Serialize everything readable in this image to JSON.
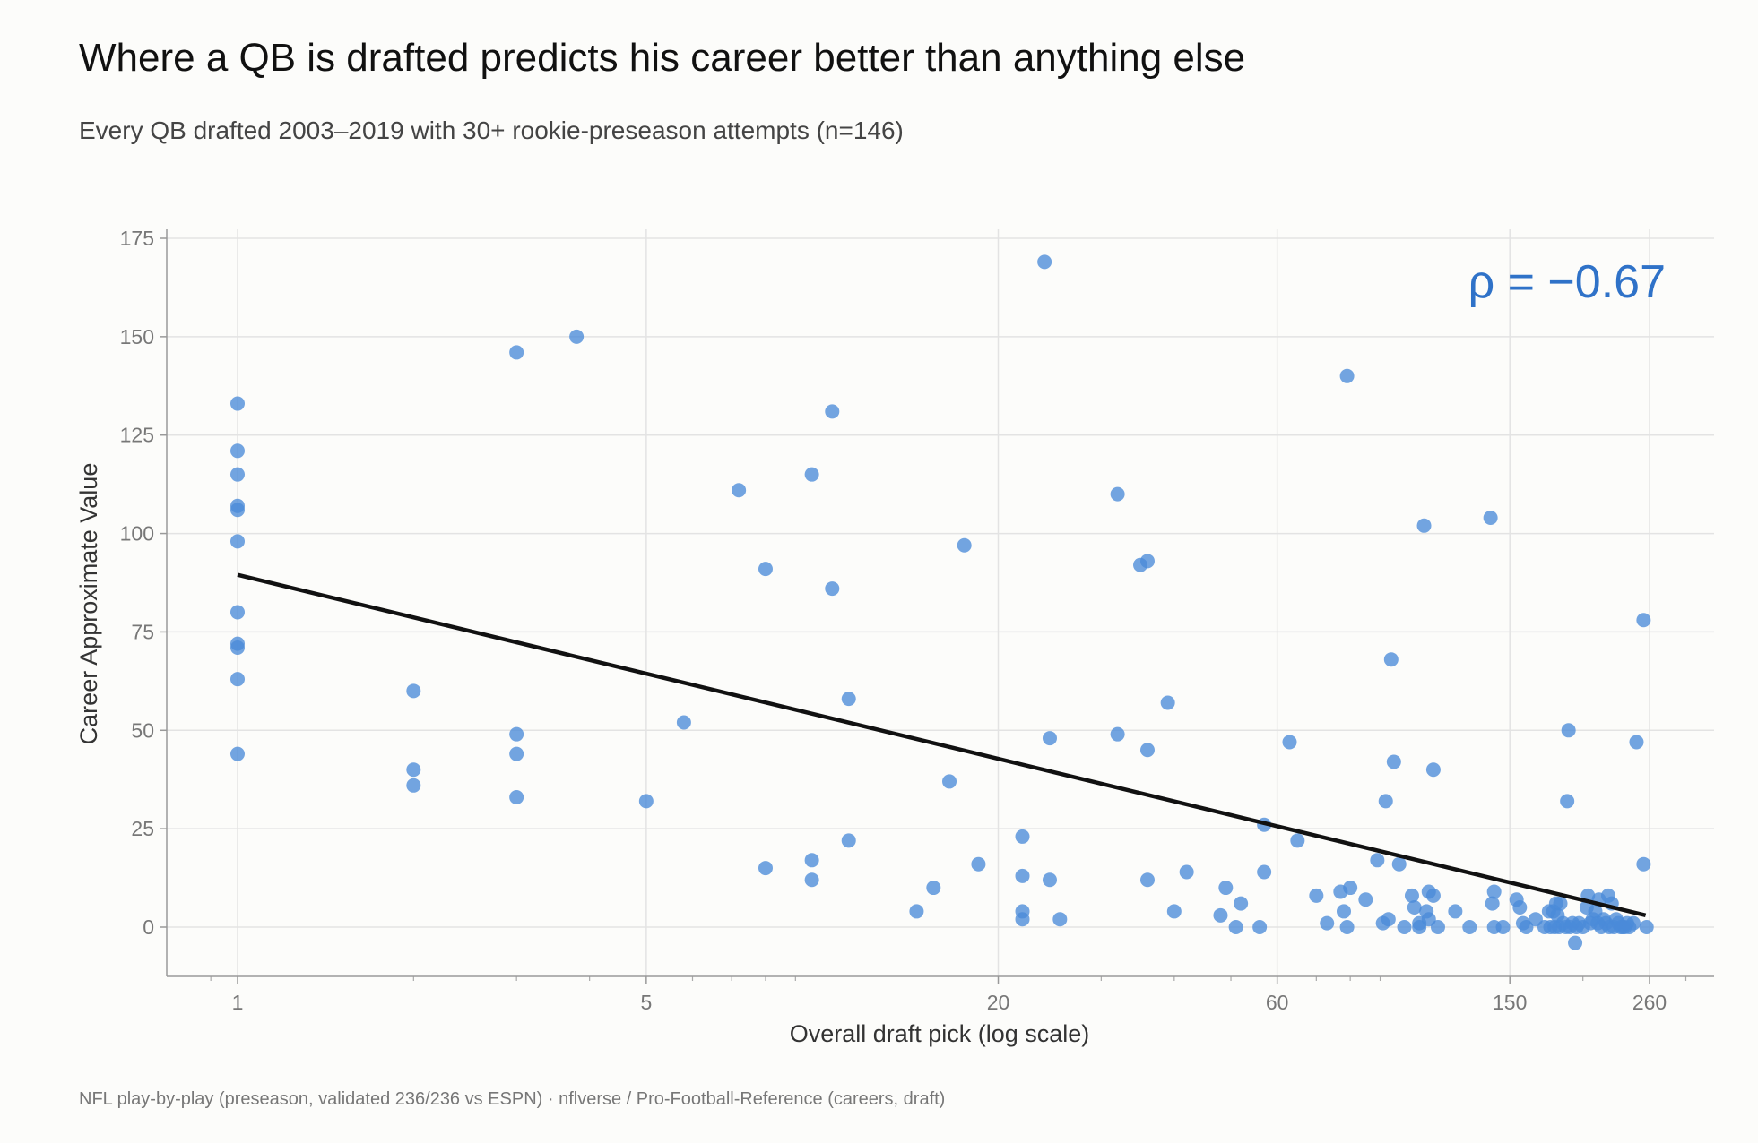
{
  "header": {
    "title": "Where a QB is drafted predicts his career better than anything else",
    "subtitle": "Every QB drafted 2003–2019 with 30+ rookie-preseason attempts (n=146)"
  },
  "footer": {
    "source": "NFL play-by-play (preseason, validated 236/236 vs ESPN)  ·  nflverse / Pro-Football-Reference (careers, draft)"
  },
  "colors": {
    "points": "#4a8ad8",
    "trend": "#111111",
    "annotation": "#2f72c8",
    "grid": "#e3e3e3"
  },
  "chart_data": {
    "type": "scatter",
    "xlabel": "Overall draft pick (log scale)",
    "ylabel": "Career Approximate Value",
    "x_scale": "log",
    "xlim": [
      0.8,
      300
    ],
    "ylim": [
      -25,
      178
    ],
    "x_ticks": [
      1,
      5,
      20,
      60,
      150,
      260
    ],
    "x_tick_labels": [
      "1",
      "5",
      "20",
      "60",
      "150",
      "260"
    ],
    "y_ticks": [
      0,
      25,
      50,
      75,
      100,
      125,
      150,
      175
    ],
    "y_tick_labels": [
      "0",
      "25",
      "50",
      "75",
      "100",
      "125",
      "150",
      "175"
    ],
    "grid": true,
    "annotation": "ρ = −0.67",
    "trend_line": {
      "x": [
        1,
        256
      ],
      "y": [
        89.5,
        3
      ]
    },
    "points": [
      [
        1,
        133
      ],
      [
        1,
        121
      ],
      [
        1,
        115
      ],
      [
        1,
        107
      ],
      [
        1,
        106
      ],
      [
        1,
        98
      ],
      [
        1,
        80
      ],
      [
        1,
        72
      ],
      [
        1,
        71
      ],
      [
        1,
        63
      ],
      [
        1,
        44
      ],
      [
        2,
        60
      ],
      [
        2,
        40
      ],
      [
        2,
        36
      ],
      [
        3,
        146
      ],
      [
        3,
        49
      ],
      [
        3,
        44
      ],
      [
        3,
        33
      ],
      [
        3.8,
        150
      ],
      [
        5,
        32
      ],
      [
        5.8,
        52
      ],
      [
        7.2,
        111
      ],
      [
        8,
        91
      ],
      [
        8,
        15
      ],
      [
        9.6,
        115
      ],
      [
        9.6,
        17
      ],
      [
        9.6,
        12
      ],
      [
        10.4,
        131
      ],
      [
        10.4,
        86
      ],
      [
        11.1,
        58
      ],
      [
        11.1,
        22
      ],
      [
        14.5,
        4
      ],
      [
        15.5,
        10
      ],
      [
        16.5,
        37
      ],
      [
        17.5,
        97
      ],
      [
        18.5,
        16
      ],
      [
        22,
        23
      ],
      [
        22,
        13
      ],
      [
        22,
        4
      ],
      [
        22,
        2
      ],
      [
        24,
        169
      ],
      [
        24.5,
        48
      ],
      [
        24.5,
        12
      ],
      [
        25.5,
        2
      ],
      [
        32,
        110
      ],
      [
        32,
        49
      ],
      [
        35,
        92
      ],
      [
        36,
        93
      ],
      [
        36,
        45
      ],
      [
        36,
        12
      ],
      [
        39,
        57
      ],
      [
        40,
        4
      ],
      [
        42,
        14
      ],
      [
        48,
        3
      ],
      [
        49,
        10
      ],
      [
        51,
        0
      ],
      [
        52,
        6
      ],
      [
        56,
        0
      ],
      [
        57,
        26
      ],
      [
        57,
        14
      ],
      [
        63,
        47
      ],
      [
        65,
        22
      ],
      [
        70,
        8
      ],
      [
        73,
        1
      ],
      [
        77,
        9
      ],
      [
        78,
        4
      ],
      [
        79,
        0
      ],
      [
        79,
        140
      ],
      [
        80,
        10
      ],
      [
        85,
        7
      ],
      [
        89,
        17
      ],
      [
        91,
        1
      ],
      [
        93,
        2
      ],
      [
        94,
        68
      ],
      [
        95,
        42
      ],
      [
        92,
        32
      ],
      [
        97,
        16
      ],
      [
        99,
        0
      ],
      [
        102,
        8
      ],
      [
        103,
        5
      ],
      [
        105,
        1
      ],
      [
        105,
        0
      ],
      [
        107,
        102
      ],
      [
        108,
        4
      ],
      [
        109,
        9
      ],
      [
        109,
        2
      ],
      [
        111,
        40
      ],
      [
        111,
        8
      ],
      [
        113,
        0
      ],
      [
        121,
        4
      ],
      [
        128,
        0
      ],
      [
        139,
        104
      ],
      [
        140,
        6
      ],
      [
        141,
        9
      ],
      [
        141,
        0
      ],
      [
        146,
        0
      ],
      [
        154,
        7
      ],
      [
        156,
        5
      ],
      [
        158,
        1
      ],
      [
        160,
        0
      ],
      [
        166,
        2
      ],
      [
        172,
        0
      ],
      [
        175,
        4
      ],
      [
        176,
        0
      ],
      [
        178,
        4
      ],
      [
        179,
        0
      ],
      [
        180,
        6
      ],
      [
        181,
        3
      ],
      [
        182,
        0
      ],
      [
        183,
        6
      ],
      [
        185,
        1
      ],
      [
        187,
        0
      ],
      [
        188,
        32
      ],
      [
        189,
        50
      ],
      [
        190,
        0
      ],
      [
        192,
        1
      ],
      [
        194,
        -4
      ],
      [
        195,
        0
      ],
      [
        197,
        1
      ],
      [
        200,
        0
      ],
      [
        203,
        5
      ],
      [
        204,
        8
      ],
      [
        206,
        1
      ],
      [
        208,
        2
      ],
      [
        210,
        4
      ],
      [
        212,
        1
      ],
      [
        213,
        7
      ],
      [
        215,
        0
      ],
      [
        217,
        2
      ],
      [
        219,
        1
      ],
      [
        221,
        8
      ],
      [
        222,
        0
      ],
      [
        224,
        6
      ],
      [
        226,
        0
      ],
      [
        228,
        2
      ],
      [
        230,
        1
      ],
      [
        232,
        0
      ],
      [
        234,
        0
      ],
      [
        236,
        0
      ],
      [
        238,
        1
      ],
      [
        240,
        0
      ],
      [
        244,
        1
      ],
      [
        247,
        47
      ],
      [
        254,
        78
      ],
      [
        254,
        16
      ],
      [
        257,
        0
      ]
    ]
  }
}
